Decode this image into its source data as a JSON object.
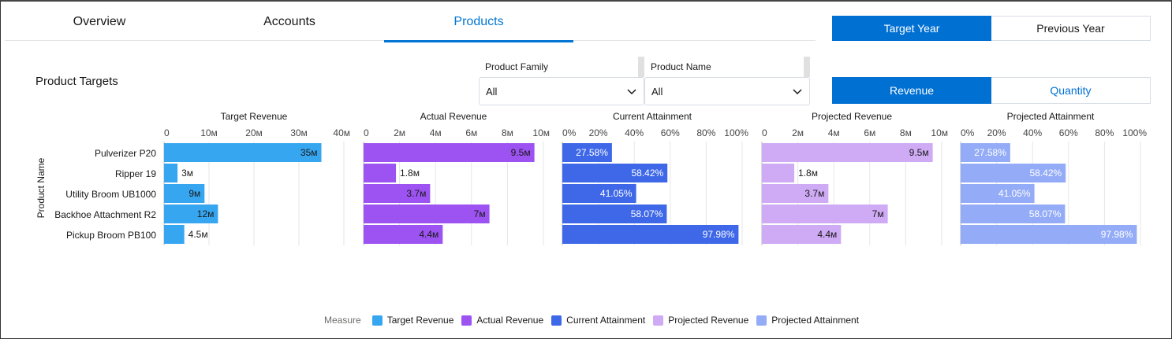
{
  "tabs": [
    {
      "label": "Overview",
      "active": false
    },
    {
      "label": "Accounts",
      "active": false
    },
    {
      "label": "Products",
      "active": true
    }
  ],
  "year_toggle": {
    "options": [
      "Target Year",
      "Previous Year"
    ],
    "selected": "Target Year"
  },
  "measure_toggle": {
    "options": [
      "Revenue",
      "Quantity"
    ],
    "selected": "Revenue"
  },
  "section_title": "Product Targets",
  "filters": [
    {
      "label": "Product Family",
      "value": "All"
    },
    {
      "label": "Product Name",
      "value": "All"
    }
  ],
  "legend": {
    "title": "Measure",
    "items": [
      {
        "label": "Target Revenue",
        "color": "#37a6f0"
      },
      {
        "label": "Actual Revenue",
        "color": "#9d53f2"
      },
      {
        "label": "Current Attainment",
        "color": "#3e68e8"
      },
      {
        "label": "Projected Revenue",
        "color": "#cfaaf5"
      },
      {
        "label": "Projected Attainment",
        "color": "#94acf7"
      }
    ]
  },
  "chart_data": {
    "type": "bar",
    "orientation": "horizontal",
    "y_axis_label": "Product Name",
    "categories": [
      "Pulverizer P20",
      "Ripper 19",
      "Utility Broom UB1000",
      "Backhoe Attachment R2",
      "Pickup Broom PB100"
    ],
    "panels": [
      {
        "title": "Target Revenue",
        "color": "#37a6f0",
        "xlim": [
          0,
          40000000
        ],
        "ticks": [
          0,
          10000000,
          20000000,
          30000000,
          40000000
        ],
        "tick_labels": [
          "0",
          "10м",
          "20м",
          "30м",
          "40м"
        ],
        "values": [
          35000000,
          3000000,
          9000000,
          12000000,
          4500000
        ],
        "labels": [
          "35м",
          "3м",
          "9м",
          "12м",
          "4.5м"
        ]
      },
      {
        "title": "Actual Revenue",
        "color": "#9d53f2",
        "xlim": [
          0,
          10000000
        ],
        "ticks": [
          0,
          2000000,
          4000000,
          6000000,
          8000000,
          10000000
        ],
        "tick_labels": [
          "0",
          "2м",
          "4м",
          "6м",
          "8м",
          "10м"
        ],
        "values": [
          9500000,
          1800000,
          3700000,
          7000000,
          4400000
        ],
        "labels": [
          "9.5м",
          "1.8м",
          "3.7м",
          "7м",
          "4.4м"
        ]
      },
      {
        "title": "Current Attainment",
        "color": "#3e68e8",
        "xlim": [
          0,
          100
        ],
        "ticks": [
          0,
          20,
          40,
          60,
          80,
          100
        ],
        "tick_labels": [
          "0%",
          "20%",
          "40%",
          "60%",
          "80%",
          "100%"
        ],
        "values": [
          27.58,
          58.42,
          41.05,
          58.07,
          97.98
        ],
        "labels": [
          "27.58%",
          "58.42%",
          "41.05%",
          "58.07%",
          "97.98%"
        ]
      },
      {
        "title": "Projected Revenue",
        "color": "#cfaaf5",
        "xlim": [
          0,
          10000000
        ],
        "ticks": [
          0,
          2000000,
          4000000,
          6000000,
          8000000,
          10000000
        ],
        "tick_labels": [
          "0",
          "2м",
          "4м",
          "6м",
          "8м",
          "10м"
        ],
        "values": [
          9500000,
          1800000,
          3700000,
          7000000,
          4400000
        ],
        "labels": [
          "9.5м",
          "1.8м",
          "3.7м",
          "7м",
          "4.4м"
        ]
      },
      {
        "title": "Projected Attainment",
        "color": "#94acf7",
        "xlim": [
          0,
          100
        ],
        "ticks": [
          0,
          20,
          40,
          60,
          80,
          100
        ],
        "tick_labels": [
          "0%",
          "20%",
          "40%",
          "60%",
          "80%",
          "100%"
        ],
        "values": [
          27.58,
          58.42,
          41.05,
          58.07,
          97.98
        ],
        "labels": [
          "27.58%",
          "58.42%",
          "41.05%",
          "58.07%",
          "97.98%"
        ]
      }
    ],
    "legend_position": "bottom",
    "grid": true
  }
}
